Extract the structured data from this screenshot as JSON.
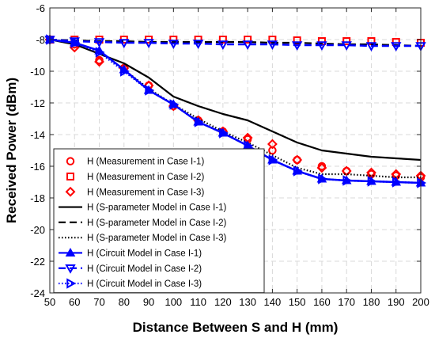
{
  "chart_data": {
    "type": "line",
    "xlabel": "Distance Between S and H (mm)",
    "ylabel": "Received Power (dBm)",
    "xlim": [
      50,
      200
    ],
    "ylim": [
      -24,
      -6
    ],
    "xticks": [
      50,
      60,
      70,
      80,
      90,
      100,
      110,
      120,
      130,
      140,
      150,
      160,
      170,
      180,
      190,
      200
    ],
    "yticks": [
      -6,
      -8,
      -10,
      -12,
      -14,
      -16,
      -18,
      -20,
      -22,
      -24
    ],
    "grid": true,
    "legend_position": "bottom-left",
    "x": [
      50,
      60,
      70,
      80,
      90,
      100,
      110,
      120,
      130,
      140,
      150,
      160,
      170,
      180,
      190,
      200
    ],
    "series": [
      {
        "name": "H (Measurement in Case I-1)",
        "style": "marker",
        "marker": "circle",
        "color": "#ff0000",
        "values": [
          -8.0,
          -8.3,
          -9.3,
          -9.8,
          -10.9,
          -12.2,
          -13.1,
          -13.8,
          -14.3,
          -15.0,
          -15.6,
          -16.0,
          -16.3,
          -16.5,
          -16.6,
          -16.7
        ]
      },
      {
        "name": "H (Measurement in Case I-2)",
        "style": "marker",
        "marker": "square",
        "color": "#ff0000",
        "values": [
          -8.0,
          -8.0,
          -8.0,
          -8.0,
          -8.0,
          -8.0,
          -8.0,
          -8.0,
          -8.0,
          -8.0,
          -8.05,
          -8.1,
          -8.1,
          -8.1,
          -8.15,
          -8.2
        ]
      },
      {
        "name": "H (Measurement in Case I-3)",
        "style": "marker",
        "marker": "diamond",
        "color": "#ff0000",
        "values": [
          -8.0,
          -8.5,
          -9.4,
          -9.8,
          -10.9,
          -12.2,
          -13.1,
          -13.8,
          -14.2,
          -14.6,
          -15.6,
          -16.1,
          -16.3,
          -16.4,
          -16.5,
          -16.6
        ]
      },
      {
        "name": "H (S-parameter Model in Case I-1)",
        "style": "solid",
        "color": "#000000",
        "values": [
          -8.0,
          -8.3,
          -8.9,
          -9.5,
          -10.4,
          -11.6,
          -12.2,
          -12.7,
          -13.1,
          -13.8,
          -14.5,
          -15.0,
          -15.2,
          -15.4,
          -15.5,
          -15.6
        ]
      },
      {
        "name": "H (S-parameter Model in Case I-2)",
        "style": "dashed",
        "color": "#000000",
        "values": [
          -8.0,
          -8.05,
          -8.1,
          -8.1,
          -8.15,
          -8.15,
          -8.15,
          -8.15,
          -8.15,
          -8.2,
          -8.2,
          -8.25,
          -8.3,
          -8.3,
          -8.35,
          -8.4
        ]
      },
      {
        "name": "H (S-parameter Model in Case I-3)",
        "style": "dotted",
        "color": "#000000",
        "values": [
          -8.0,
          -8.2,
          -8.8,
          -9.9,
          -11.1,
          -12.1,
          -13.0,
          -13.8,
          -14.5,
          -15.3,
          -16.1,
          -16.5,
          -16.5,
          -16.6,
          -16.7,
          -16.7
        ]
      },
      {
        "name": "H (Circuit Model in Case I-1)",
        "style": "solid",
        "marker": "triangle-up",
        "color": "#0000ff",
        "values": [
          -8.0,
          -8.2,
          -8.7,
          -9.9,
          -11.2,
          -12.1,
          -13.2,
          -13.9,
          -14.7,
          -15.6,
          -16.3,
          -16.8,
          -16.9,
          -16.95,
          -17.0,
          -17.05
        ]
      },
      {
        "name": "H (Circuit Model in Case I-2)",
        "style": "dashed",
        "marker": "triangle-down",
        "color": "#0000ff",
        "values": [
          -8.0,
          -8.1,
          -8.15,
          -8.2,
          -8.2,
          -8.25,
          -8.25,
          -8.3,
          -8.3,
          -8.3,
          -8.35,
          -8.35,
          -8.35,
          -8.4,
          -8.4,
          -8.4
        ]
      },
      {
        "name": "H (Circuit Model in Case I-3)",
        "style": "dotted",
        "marker": "triangle-right",
        "color": "#0000ff",
        "values": [
          -8.0,
          -8.2,
          -8.8,
          -10.0,
          -11.2,
          -12.1,
          -13.2,
          -13.9,
          -14.7,
          -15.6,
          -16.3,
          -16.8,
          -16.9,
          -16.95,
          -17.0,
          -17.05
        ]
      }
    ]
  }
}
